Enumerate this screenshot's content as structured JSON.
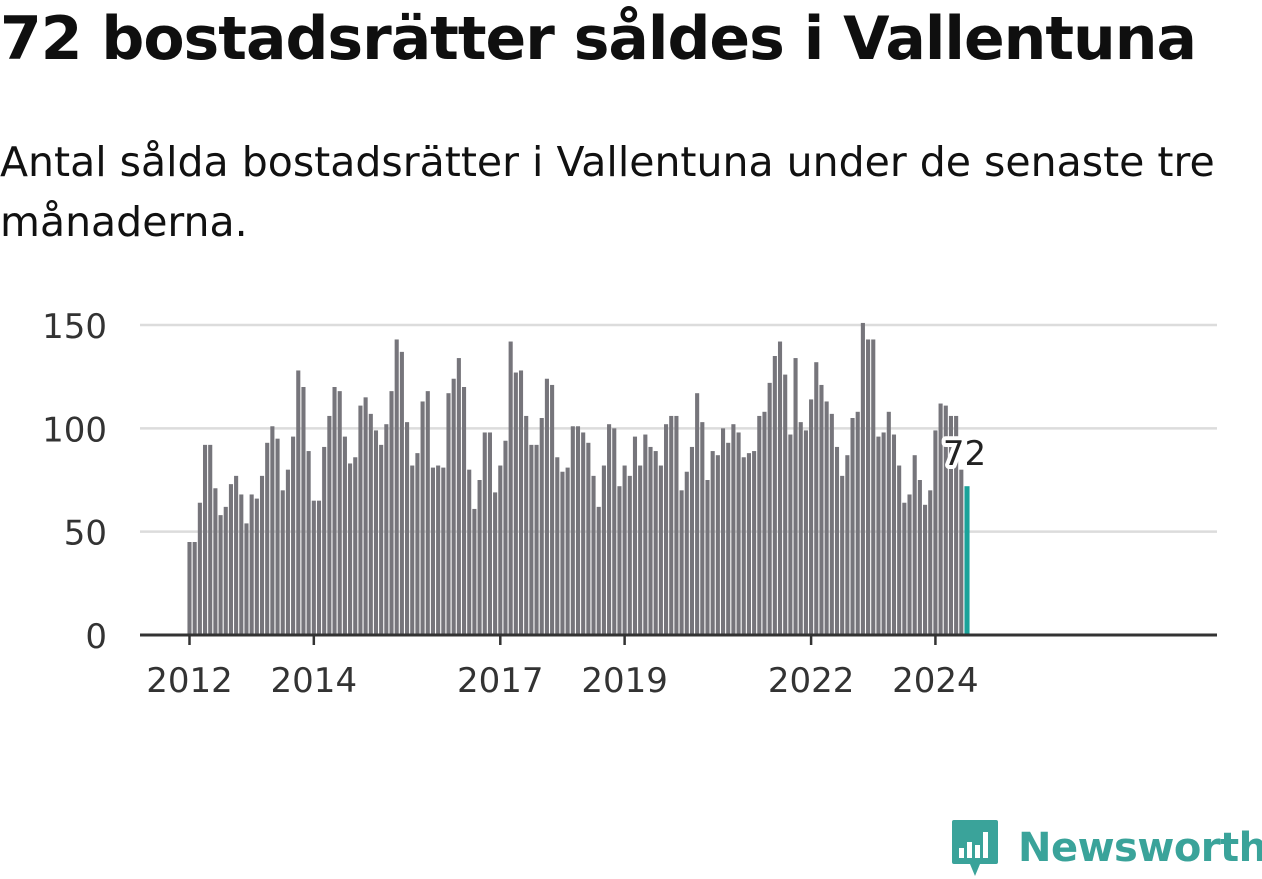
{
  "title": "72 bostadsrätter såldes i Vallentuna",
  "subtitle": "Antal sålda bostadsrätter i Vallentuna under de senaste tre månaderna.",
  "brand": {
    "name": "Newsworthy",
    "color": "#3aa39a",
    "icon": "bar-chart-logo-icon"
  },
  "colors": {
    "bar": "#76757b",
    "highlight": "#1aa39a",
    "grid": "#dcdcdc",
    "axis": "#333333"
  },
  "chart_data": {
    "type": "bar",
    "title": "72 bostadsrätter såldes i Vallentuna",
    "xlabel": "",
    "ylabel": "",
    "ylim": [
      0,
      150
    ],
    "yticks": [
      0,
      50,
      100,
      150
    ],
    "grid": true,
    "start": "2012-01",
    "frequency": "monthly",
    "xticks": [
      {
        "label": "2012",
        "index": 0
      },
      {
        "label": "2014",
        "index": 24
      },
      {
        "label": "2017",
        "index": 60
      },
      {
        "label": "2019",
        "index": 84
      },
      {
        "label": "2022",
        "index": 120
      },
      {
        "label": "2024",
        "index": 144
      }
    ],
    "values": [
      45,
      45,
      64,
      92,
      92,
      71,
      58,
      62,
      73,
      77,
      68,
      54,
      68,
      66,
      77,
      93,
      101,
      95,
      70,
      80,
      96,
      128,
      120,
      89,
      65,
      65,
      91,
      106,
      120,
      118,
      96,
      83,
      86,
      111,
      115,
      107,
      99,
      92,
      102,
      118,
      143,
      137,
      103,
      82,
      88,
      113,
      118,
      81,
      82,
      81,
      117,
      124,
      134,
      120,
      80,
      61,
      75,
      98,
      98,
      69,
      82,
      94,
      142,
      127,
      128,
      106,
      92,
      92,
      105,
      124,
      121,
      86,
      79,
      81,
      101,
      101,
      98,
      93,
      77,
      62,
      82,
      102,
      100,
      72,
      82,
      77,
      96,
      82,
      97,
      91,
      89,
      82,
      102,
      106,
      106,
      70,
      79,
      91,
      117,
      103,
      75,
      89,
      87,
      100,
      93,
      102,
      98,
      86,
      88,
      89,
      106,
      108,
      122,
      135,
      142,
      126,
      97,
      134,
      103,
      99,
      114,
      132,
      121,
      113,
      107,
      91,
      77,
      87,
      105,
      108,
      151,
      143,
      143,
      96,
      98,
      108,
      97,
      82,
      64,
      68,
      87,
      75,
      63,
      70,
      99,
      112,
      111,
      106,
      106,
      80,
      72
    ],
    "highlight": {
      "index": 150,
      "value": 72,
      "label": "72"
    }
  }
}
